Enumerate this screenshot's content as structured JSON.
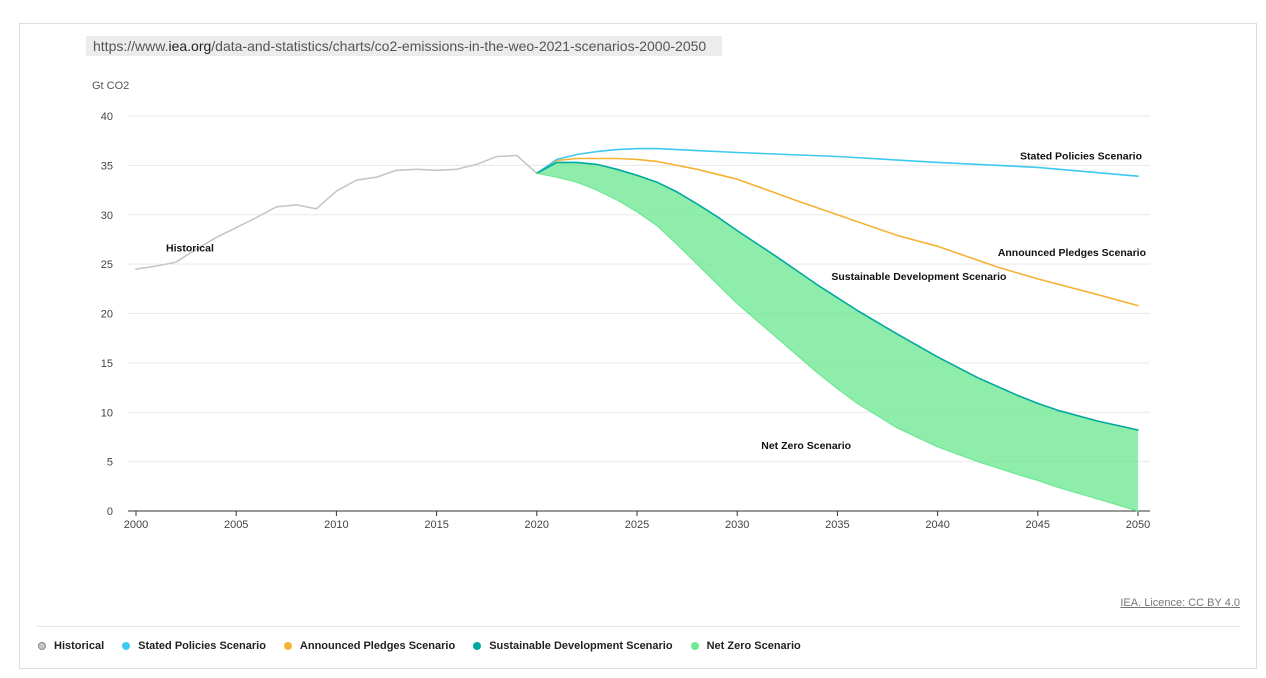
{
  "source_url": {
    "prefix": "https://www.",
    "domain": "iea.org",
    "path": "/data-and-statistics/charts/co2-emissions-in-the-weo-2021-scenarios-2000-2050"
  },
  "licence": "IEA. Licence: CC BY 4.0",
  "legend": [
    {
      "label": "Historical",
      "color": "#c7c7c7"
    },
    {
      "label": "Stated Policies Scenario",
      "color": "#3ec9ee"
    },
    {
      "label": "Announced Pledges Scenario",
      "color": "#f5b335"
    },
    {
      "label": "Sustainable Development Scenario",
      "color": "#00a99d"
    },
    {
      "label": "Net Zero Scenario",
      "color": "#6ee893"
    }
  ],
  "chart_data": {
    "type": "line",
    "ylabel": "Gt CO2",
    "xlim": [
      2000,
      2050
    ],
    "ylim": [
      0,
      40
    ],
    "xticks": [
      2000,
      2005,
      2010,
      2015,
      2020,
      2025,
      2030,
      2035,
      2040,
      2045,
      2050
    ],
    "yticks": [
      0,
      5,
      10,
      15,
      20,
      25,
      30,
      35,
      40
    ],
    "grid": true,
    "series": [
      {
        "name": "Historical",
        "color": "#c7c7c7",
        "x": [
          2000,
          2001,
          2002,
          2003,
          2004,
          2005,
          2006,
          2007,
          2008,
          2009,
          2010,
          2011,
          2012,
          2013,
          2014,
          2015,
          2016,
          2017,
          2018,
          2019,
          2020
        ],
        "values": [
          24.5,
          24.8,
          25.2,
          26.5,
          27.7,
          28.7,
          29.7,
          30.8,
          31.0,
          30.6,
          32.4,
          33.5,
          33.8,
          34.5,
          34.6,
          34.5,
          34.6,
          35.1,
          35.9,
          36.0,
          34.2
        ]
      },
      {
        "name": "Stated Policies Scenario",
        "color": "#3ec9ee",
        "x": [
          2020,
          2021,
          2022,
          2023,
          2024,
          2025,
          2026,
          2027,
          2028,
          2030,
          2035,
          2040,
          2045,
          2050
        ],
        "values": [
          34.2,
          35.6,
          36.1,
          36.4,
          36.6,
          36.7,
          36.7,
          36.6,
          36.5,
          36.3,
          35.9,
          35.3,
          34.8,
          33.9
        ]
      },
      {
        "name": "Announced Pledges Scenario",
        "color": "#f5b335",
        "x": [
          2020,
          2021,
          2022,
          2023,
          2024,
          2025,
          2026,
          2027,
          2028,
          2029,
          2030,
          2033,
          2035,
          2038,
          2040,
          2043,
          2045,
          2048,
          2050
        ],
        "values": [
          34.2,
          35.5,
          35.7,
          35.7,
          35.7,
          35.6,
          35.4,
          35.0,
          34.6,
          34.1,
          33.6,
          31.4,
          30.0,
          27.9,
          26.8,
          24.7,
          23.5,
          21.9,
          20.8
        ]
      },
      {
        "name": "Sustainable Development Scenario",
        "color": "#00a99d",
        "x": [
          2020,
          2021,
          2022,
          2023,
          2024,
          2025,
          2026,
          2027,
          2028,
          2029,
          2030,
          2032,
          2034,
          2035,
          2036,
          2038,
          2040,
          2042,
          2044,
          2045,
          2046,
          2048,
          2050
        ],
        "values": [
          34.2,
          35.3,
          35.3,
          35.1,
          34.6,
          34.0,
          33.3,
          32.3,
          31.1,
          29.8,
          28.4,
          25.7,
          22.9,
          21.6,
          20.3,
          17.9,
          15.6,
          13.5,
          11.7,
          10.9,
          10.2,
          9.1,
          8.2
        ]
      },
      {
        "name": "Net Zero Scenario",
        "color": "#6ee893",
        "x": [
          2020,
          2021,
          2022,
          2023,
          2024,
          2025,
          2026,
          2027,
          2028,
          2029,
          2030,
          2032,
          2034,
          2035,
          2036,
          2038,
          2040,
          2042,
          2044,
          2045,
          2046,
          2048,
          2050
        ],
        "values": [
          34.2,
          33.8,
          33.3,
          32.5,
          31.5,
          30.3,
          28.9,
          27.0,
          25.0,
          23.0,
          21.0,
          17.5,
          14.0,
          12.4,
          10.9,
          8.4,
          6.5,
          5.0,
          3.7,
          3.1,
          2.4,
          1.2,
          0.0
        ]
      }
    ],
    "annotations": [
      {
        "text": "Historical",
        "x": 2001.5,
        "y": 26.3
      },
      {
        "text": "Stated Policies Scenario",
        "x": 2050.2,
        "y": 35.6,
        "anchor": "end"
      },
      {
        "text": "Announced Pledges Scenario",
        "x": 2050.4,
        "y": 25.8,
        "anchor": "end"
      },
      {
        "text": "Sustainable Development Scenario",
        "x": 2034.7,
        "y": 23.4
      },
      {
        "text": "Net Zero Scenario",
        "x": 2031.2,
        "y": 6.3
      }
    ]
  }
}
